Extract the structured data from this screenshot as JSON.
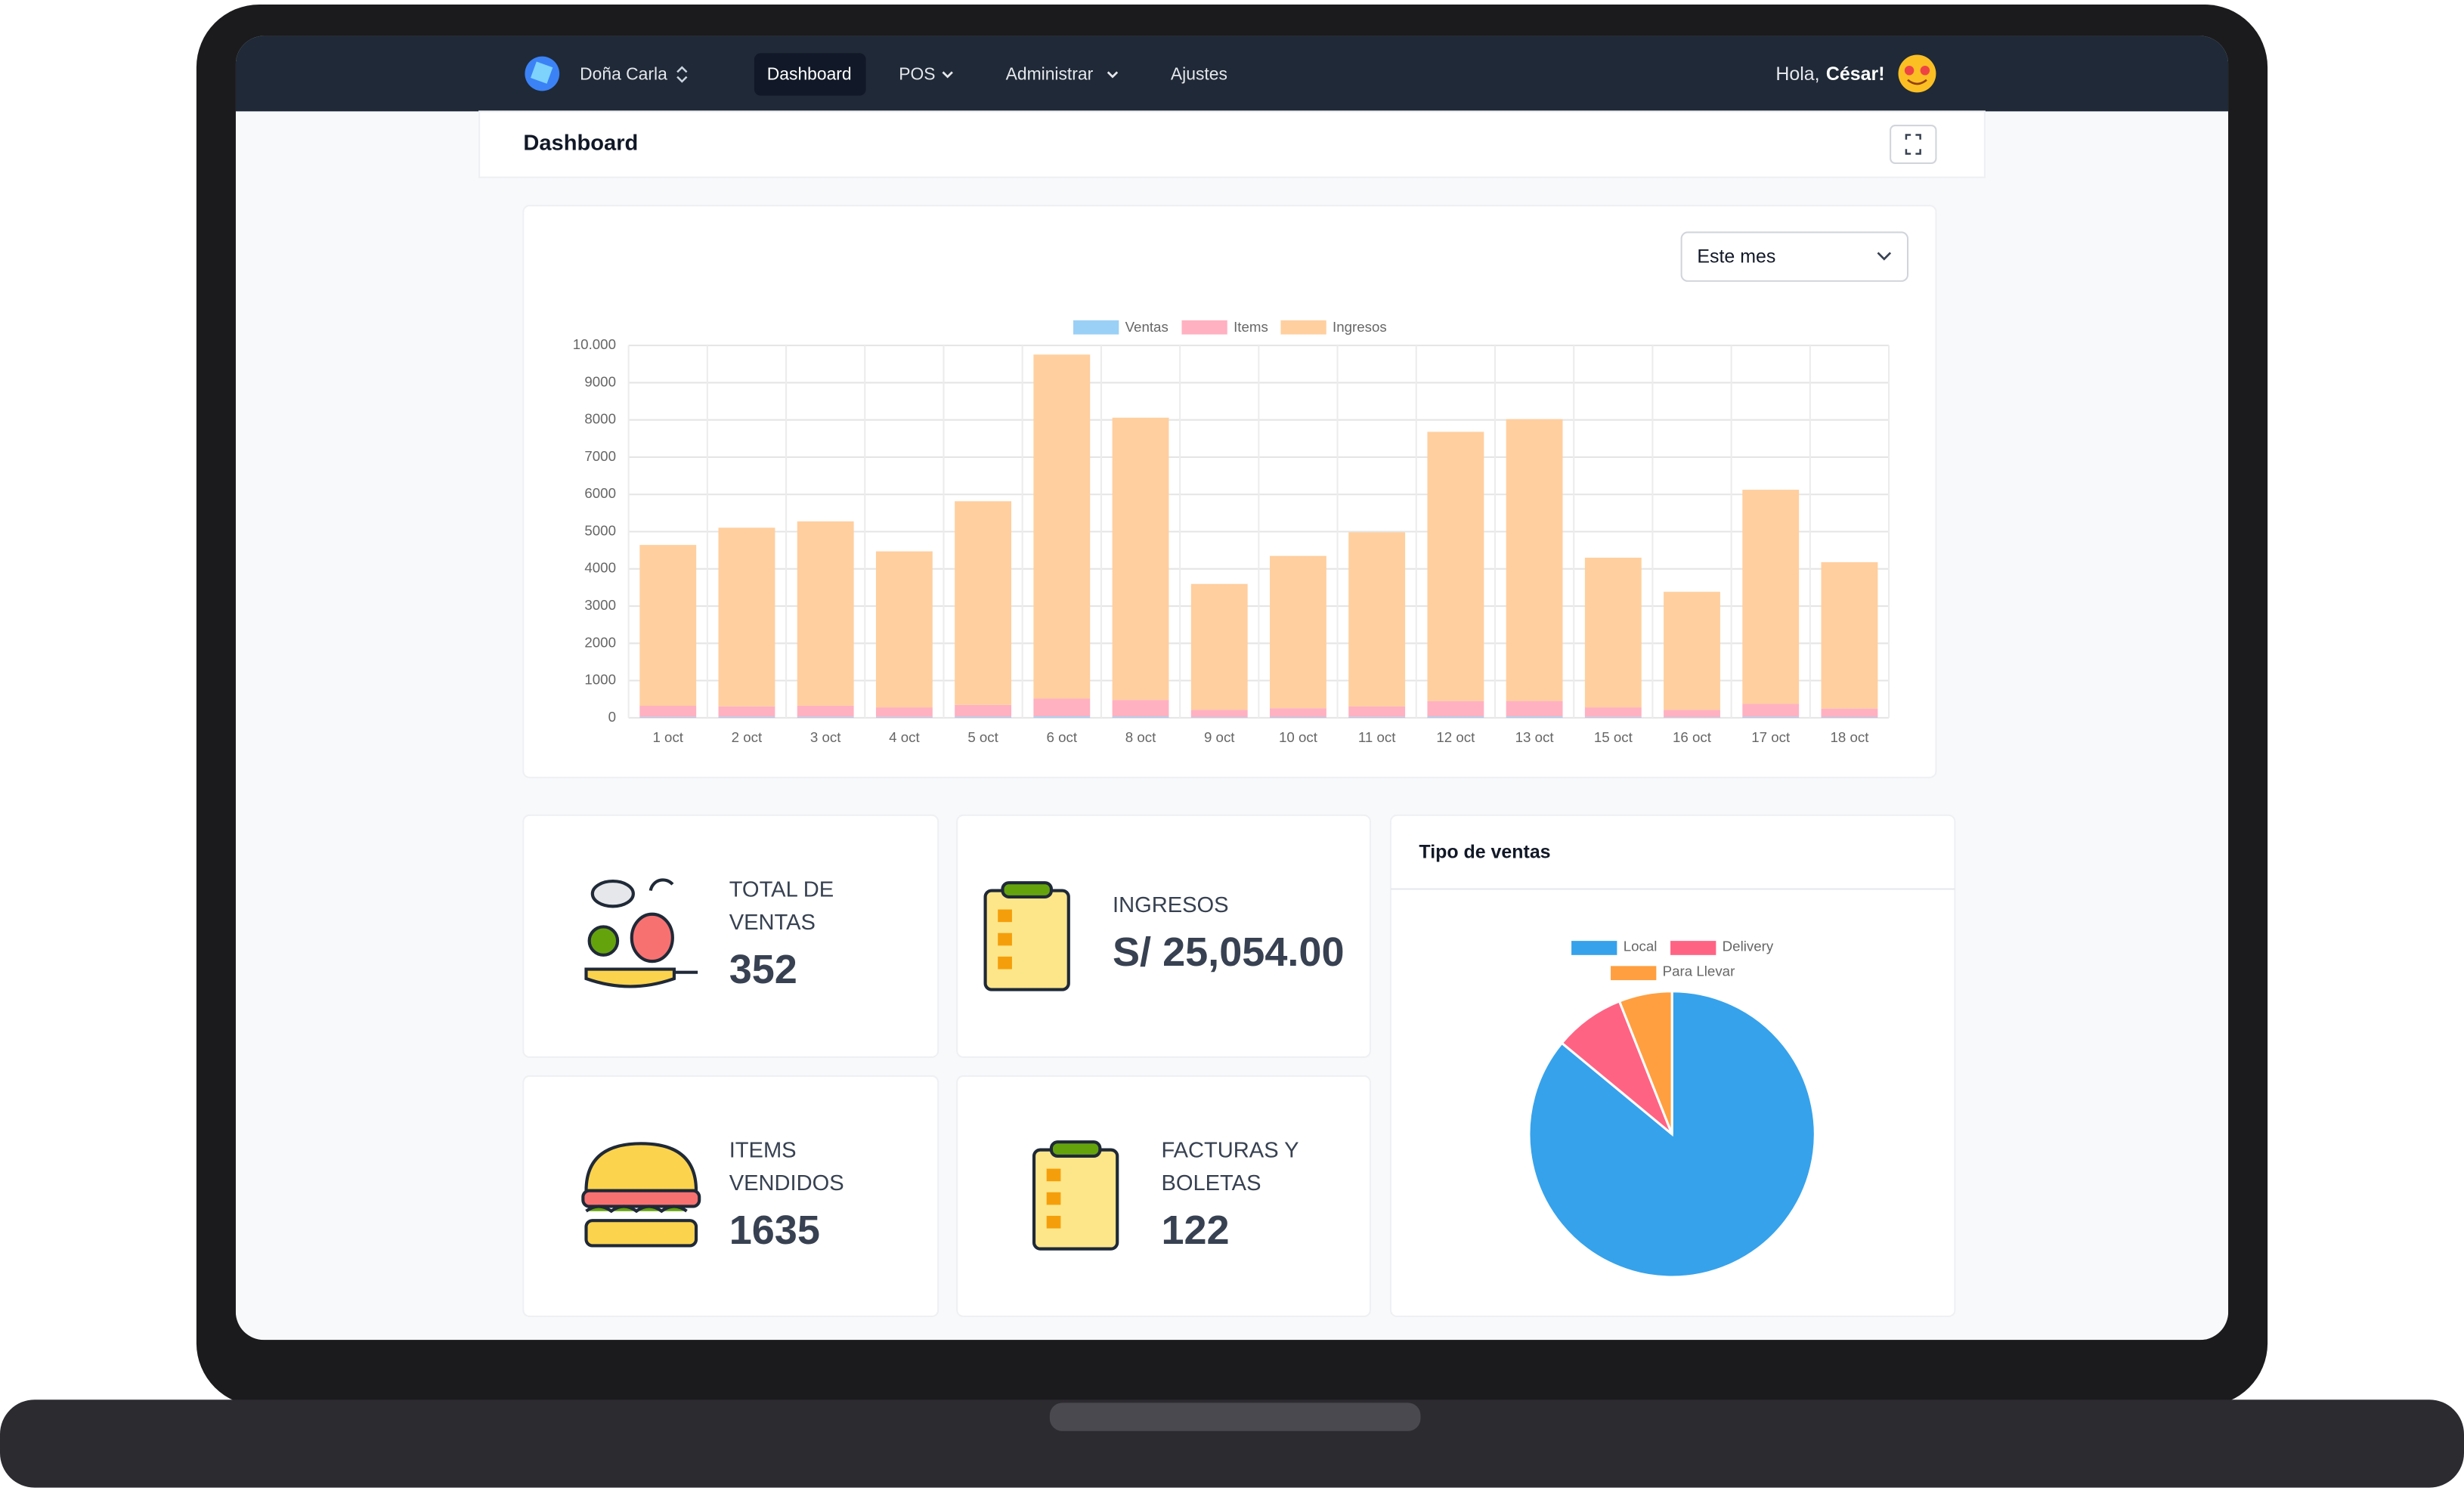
{
  "nav": {
    "brand": "Doña Carla",
    "items": [
      "Dashboard",
      "POS",
      "Administrar",
      "Ajustes"
    ],
    "greeting": "Hola,",
    "user": "César!"
  },
  "header": {
    "title": "Dashboard"
  },
  "filter": "Este mes",
  "cards": [
    {
      "label_lines": [
        "TOTAL DE",
        "VENTAS"
      ],
      "value": "352"
    },
    {
      "label_lines": [
        "INGRESOS"
      ],
      "value": "S/ 25,054.00"
    },
    {
      "label_lines": [
        "ITEMS",
        "VENDIDOS"
      ],
      "value": "1635"
    },
    {
      "label_lines": [
        "FACTURAS Y",
        "BOLETAS"
      ],
      "value": "122"
    }
  ],
  "chart_data": [
    {
      "type": "bar",
      "stacked": true,
      "grid": true,
      "categories": [
        "1 oct",
        "2 oct",
        "3 oct",
        "4 oct",
        "5 oct",
        "6 oct",
        "8 oct",
        "9 oct",
        "10 oct",
        "11 oct",
        "12 oct",
        "13 oct",
        "15 oct",
        "16 oct",
        "17 oct",
        "18 oct"
      ],
      "series": [
        {
          "name": "Ventas",
          "color": "#9ad0f5",
          "values": [
            22,
            25,
            24,
            20,
            26,
            35,
            30,
            15,
            18,
            22,
            30,
            32,
            20,
            14,
            25,
            18
          ]
        },
        {
          "name": "Items",
          "color": "#ffb1c1",
          "values": [
            300,
            280,
            300,
            260,
            320,
            480,
            450,
            200,
            240,
            280,
            420,
            420,
            260,
            200,
            350,
            230
          ]
        },
        {
          "name": "Ingresos",
          "color": "#ffcf9f",
          "values": [
            4320,
            4800,
            4950,
            4190,
            5470,
            9240,
            7580,
            3380,
            4090,
            4680,
            7230,
            7570,
            4020,
            3170,
            5750,
            3930
          ]
        }
      ],
      "ylim": [
        0,
        10000
      ],
      "yticks": [
        0,
        1000,
        2000,
        3000,
        4000,
        5000,
        6000,
        7000,
        8000,
        9000,
        {
          "value": 10000,
          "label": "10.000"
        }
      ]
    },
    {
      "type": "pie",
      "title": "Tipo de ventas",
      "categories": [
        "Local",
        "Delivery",
        "Para Llevar"
      ],
      "values": [
        86,
        8,
        6
      ],
      "colors": [
        "#36a2eb",
        "#ff6384",
        "#ff9f40"
      ]
    }
  ]
}
